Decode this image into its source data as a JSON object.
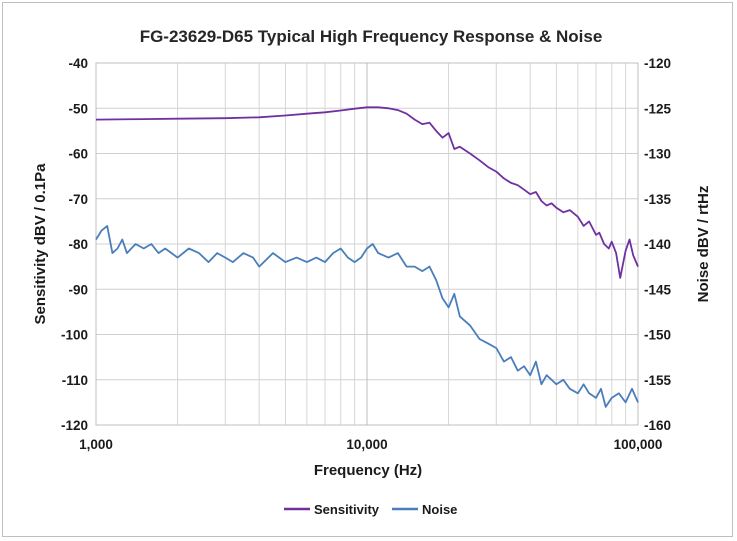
{
  "chart_data": {
    "type": "line",
    "title": "FG-23629-D65 Typical High Frequency Response & Noise",
    "xlabel": "Frequency (Hz)",
    "ylabel": "Sensitivity dBV / 0.1Pa",
    "y2label": "Noise dBV / rtHz",
    "xscale": "log",
    "xlim": [
      1000,
      100000
    ],
    "ylim": [
      -120,
      -40
    ],
    "y2lim": [
      -160,
      -120
    ],
    "x_ticks": [
      "1,000",
      "10,000",
      "100,000"
    ],
    "y_ticks": [
      "-40",
      "-50",
      "-60",
      "-70",
      "-80",
      "-90",
      "-100",
      "-110",
      "-120"
    ],
    "y2_ticks": [
      "-120",
      "-125",
      "-130",
      "-135",
      "-140",
      "-145",
      "-150",
      "-155",
      "-160"
    ],
    "grid": true,
    "legend": "bottom",
    "series": [
      {
        "name": "Sensitivity",
        "axis": "left",
        "color": "#7030a0",
        "x": [
          1000,
          1500,
          2000,
          3000,
          4000,
          5000,
          6000,
          7000,
          8000,
          9000,
          10000,
          11000,
          12000,
          13000,
          14000,
          15000,
          16000,
          17000,
          18000,
          19000,
          20000,
          21000,
          22000,
          24000,
          26000,
          28000,
          30000,
          32000,
          34000,
          36000,
          38000,
          40000,
          42000,
          44000,
          46000,
          48000,
          50000,
          53000,
          56000,
          60000,
          63000,
          66000,
          70000,
          72000,
          75000,
          78000,
          80000,
          83000,
          86000,
          90000,
          93000,
          96000,
          100000
        ],
        "y": [
          -52.5,
          -52.4,
          -52.3,
          -52.2,
          -52.0,
          -51.6,
          -51.2,
          -50.9,
          -50.5,
          -50.1,
          -49.8,
          -49.8,
          -50.0,
          -50.4,
          -51.2,
          -52.5,
          -53.5,
          -53.2,
          -55.0,
          -56.5,
          -55.5,
          -59.0,
          -58.5,
          -60.0,
          -61.5,
          -63.0,
          -64.0,
          -65.5,
          -66.5,
          -67.0,
          -68.0,
          -69.0,
          -68.5,
          -70.5,
          -71.5,
          -71.0,
          -72.0,
          -73.0,
          -72.5,
          -74.0,
          -76.0,
          -75.0,
          -78.0,
          -77.5,
          -80.0,
          -81.0,
          -79.5,
          -82.0,
          -87.5,
          -81.5,
          -79.0,
          -82.5,
          -85.0
        ]
      },
      {
        "name": "Noise",
        "axis": "right",
        "color": "#4a7ebb",
        "x": [
          1000,
          1050,
          1100,
          1150,
          1200,
          1250,
          1300,
          1400,
          1500,
          1600,
          1700,
          1800,
          2000,
          2200,
          2400,
          2600,
          2800,
          3000,
          3200,
          3500,
          3800,
          4000,
          4500,
          5000,
          5500,
          6000,
          6500,
          7000,
          7500,
          8000,
          8500,
          9000,
          9500,
          10000,
          10500,
          11000,
          12000,
          13000,
          14000,
          15000,
          16000,
          17000,
          18000,
          19000,
          20000,
          21000,
          22000,
          24000,
          26000,
          28000,
          30000,
          32000,
          34000,
          36000,
          38000,
          40000,
          42000,
          44000,
          46000,
          48000,
          50000,
          53000,
          56000,
          60000,
          63000,
          66000,
          70000,
          73000,
          76000,
          80000,
          85000,
          90000,
          95000,
          100000
        ],
        "y": [
          -139.5,
          -138.5,
          -138.0,
          -141.0,
          -140.5,
          -139.5,
          -141.0,
          -140.0,
          -140.5,
          -140.0,
          -141.0,
          -140.5,
          -141.5,
          -140.5,
          -141.0,
          -142.0,
          -141.0,
          -141.5,
          -142.0,
          -141.0,
          -141.5,
          -142.5,
          -141.0,
          -142.0,
          -141.5,
          -142.0,
          -141.5,
          -142.0,
          -141.0,
          -140.5,
          -141.5,
          -142.0,
          -141.5,
          -140.5,
          -140.0,
          -141.0,
          -141.5,
          -141.0,
          -142.5,
          -142.5,
          -143.0,
          -142.5,
          -144.0,
          -146.0,
          -147.0,
          -145.5,
          -148.0,
          -149.0,
          -150.5,
          -151.0,
          -151.5,
          -153.0,
          -152.5,
          -154.0,
          -153.5,
          -154.5,
          -153.0,
          -155.5,
          -154.5,
          -155.0,
          -155.5,
          -155.0,
          -156.0,
          -156.5,
          -155.5,
          -156.5,
          -157.0,
          -156.0,
          -158.0,
          -157.0,
          -156.5,
          -157.5,
          -156.0,
          -157.5
        ]
      }
    ]
  }
}
